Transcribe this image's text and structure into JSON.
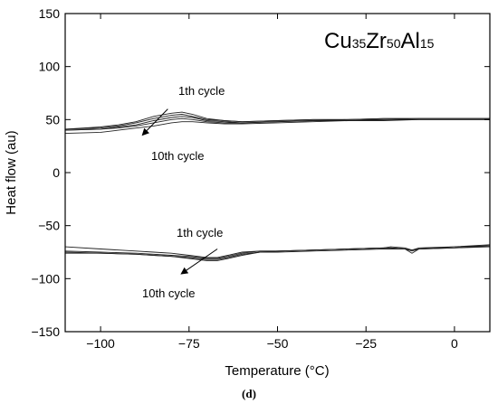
{
  "chart_data": {
    "type": "line",
    "title": "",
    "formula": {
      "parts": [
        {
          "t": "Cu",
          "sub": false
        },
        {
          "t": "35",
          "sub": true
        },
        {
          "t": "Zr",
          "sub": false
        },
        {
          "t": "50",
          "sub": true
        },
        {
          "t": "Al",
          "sub": false
        },
        {
          "t": "15",
          "sub": true
        }
      ]
    },
    "xlabel": "Temperature (°C)",
    "ylabel": "Heat flow (au)",
    "xlim": [
      -110,
      10
    ],
    "ylim": [
      -150,
      150
    ],
    "xticks": [
      -100,
      -75,
      -50,
      -25,
      0
    ],
    "xtick_labels": [
      "−100",
      "−75",
      "−50",
      "−25",
      "0"
    ],
    "yticks": [
      -150,
      -100,
      -50,
      0,
      50,
      100,
      150
    ],
    "ytick_labels": [
      "−150",
      "−100",
      "−50",
      "0",
      "50",
      "100",
      "150"
    ],
    "grid": false,
    "legend": "none",
    "series": [
      {
        "group": "upper",
        "x": [
          -110,
          -100,
          -95,
          -90,
          -85,
          -80,
          -77,
          -74,
          -70,
          -65,
          -60,
          -50,
          -40,
          -30,
          -20,
          -10,
          0,
          10
        ],
        "values": [
          41,
          43,
          45,
          48,
          53,
          56,
          57,
          55,
          51,
          49,
          48,
          49,
          50,
          50,
          51,
          51,
          51,
          51
        ]
      },
      {
        "group": "upper",
        "x": [
          -110,
          -100,
          -95,
          -90,
          -85,
          -80,
          -77,
          -74,
          -70,
          -65,
          -60,
          -50,
          -40,
          -30,
          -20,
          -10,
          0,
          10
        ],
        "values": [
          41,
          42,
          44,
          47,
          51,
          54,
          55,
          53,
          50,
          49,
          48,
          49,
          50,
          50,
          51,
          51,
          51,
          51
        ]
      },
      {
        "group": "upper",
        "x": [
          -110,
          -100,
          -95,
          -90,
          -85,
          -80,
          -77,
          -74,
          -70,
          -65,
          -60,
          -50,
          -40,
          -30,
          -20,
          -10,
          0,
          10
        ],
        "values": [
          40,
          41,
          43,
          45,
          49,
          52,
          53,
          52,
          49,
          48,
          47,
          48,
          49,
          50,
          50,
          51,
          51,
          51
        ]
      },
      {
        "group": "upper",
        "x": [
          -110,
          -100,
          -95,
          -90,
          -85,
          -80,
          -77,
          -74,
          -70,
          -65,
          -60,
          -50,
          -40,
          -30,
          -20,
          -10,
          0,
          10
        ],
        "values": [
          40,
          41,
          42,
          44,
          47,
          50,
          51,
          50,
          48,
          47,
          47,
          48,
          49,
          49,
          50,
          50,
          50,
          50
        ]
      },
      {
        "group": "upper",
        "x": [
          -110,
          -100,
          -95,
          -90,
          -85,
          -80,
          -77,
          -74,
          -70,
          -65,
          -60,
          -50,
          -40,
          -30,
          -20,
          -10,
          0,
          10
        ],
        "values": [
          37,
          38,
          40,
          42,
          44,
          47,
          48,
          48,
          47,
          46,
          46,
          47,
          48,
          49,
          49,
          50,
          50,
          50
        ]
      },
      {
        "group": "lower",
        "x": [
          -110,
          -100,
          -90,
          -85,
          -80,
          -75,
          -70,
          -67,
          -64,
          -60,
          -55,
          -50,
          -40,
          -30,
          -20,
          -18,
          -14,
          -12,
          -10,
          0,
          10
        ],
        "values": [
          -70,
          -72,
          -74,
          -75,
          -76,
          -78,
          -80,
          -80,
          -78,
          -75,
          -74,
          -74,
          -73,
          -72,
          -71,
          -70,
          -71,
          -73,
          -71,
          -70,
          -68
        ]
      },
      {
        "group": "lower",
        "x": [
          -110,
          -100,
          -90,
          -85,
          -80,
          -75,
          -70,
          -67,
          -64,
          -60,
          -55,
          -50,
          -40,
          -30,
          -20,
          -18,
          -14,
          -12,
          -10,
          0,
          10
        ],
        "values": [
          -74,
          -75,
          -76,
          -77,
          -78,
          -79,
          -81,
          -81,
          -79,
          -76,
          -74,
          -74,
          -73,
          -72,
          -71,
          -71,
          -72,
          -76,
          -72,
          -71,
          -69
        ]
      },
      {
        "group": "lower",
        "x": [
          -110,
          -100,
          -90,
          -85,
          -80,
          -75,
          -70,
          -67,
          -64,
          -60,
          -55,
          -50,
          -40,
          -30,
          -20,
          -18,
          -14,
          -12,
          -10,
          0,
          10
        ],
        "values": [
          -75,
          -76,
          -77,
          -78,
          -79,
          -80,
          -82,
          -82,
          -80,
          -77,
          -75,
          -74,
          -73,
          -72,
          -71,
          -71,
          -72,
          -74,
          -72,
          -70,
          -69
        ]
      },
      {
        "group": "lower",
        "x": [
          -110,
          -100,
          -90,
          -85,
          -80,
          -75,
          -70,
          -67,
          -64,
          -60,
          -55,
          -50,
          -40,
          -30,
          -20,
          -18,
          -14,
          -12,
          -10,
          0,
          10
        ],
        "values": [
          -76,
          -76,
          -77,
          -78,
          -79,
          -81,
          -83,
          -83,
          -81,
          -78,
          -75,
          -75,
          -74,
          -73,
          -72,
          -72,
          -72,
          -73,
          -72,
          -71,
          -70
        ]
      }
    ],
    "annotations": [
      {
        "id": "upper-first",
        "text": "1th cycle"
      },
      {
        "id": "upper-tenth",
        "text": "10th cycle"
      },
      {
        "id": "lower-first",
        "text": "1th cycle"
      },
      {
        "id": "lower-tenth",
        "text": "10th cycle"
      }
    ],
    "arrows": [
      {
        "group": "upper",
        "from": [
          -81,
          60
        ],
        "to": [
          -88,
          36
        ]
      },
      {
        "group": "lower",
        "from": [
          -67,
          -72
        ],
        "to": [
          -77,
          -95
        ]
      }
    ]
  },
  "figure": {
    "panel_label": "(d)"
  }
}
